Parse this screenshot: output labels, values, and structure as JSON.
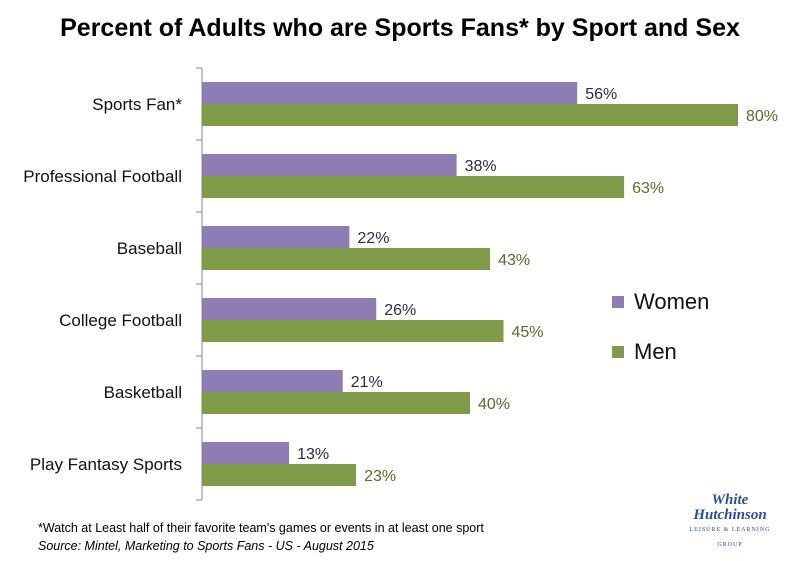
{
  "chart_data": {
    "type": "bar",
    "orientation": "horizontal",
    "title": "Percent of Adults who are Sports Fans* by Sport and Sex",
    "categories": [
      "Sports Fan*",
      "Professional Football",
      "Baseball",
      "College Football",
      "Basketball",
      "Play Fantasy Sports"
    ],
    "series": [
      {
        "name": "Women",
        "values": [
          56,
          38,
          22,
          26,
          21,
          13
        ],
        "color": "#8e7cb4",
        "label_color": "#2e2a4a"
      },
      {
        "name": "Men",
        "values": [
          80,
          63,
          43,
          45,
          40,
          23
        ],
        "color": "#7f9a48",
        "label_color": "#5a6b2e"
      }
    ],
    "value_suffix": "%",
    "xlim": [
      0,
      100
    ],
    "grid": false,
    "legend_position": "right"
  },
  "footnote": "*Watch at Least half of their favorite team's games or events in at least one sport",
  "source": "Source: Mintel, Marketing to Sports Fans - US - August 2015",
  "logo": {
    "line1": "White",
    "line2": "Hutchinson",
    "tagline": "LEISURE & LEARNING GROUP"
  }
}
